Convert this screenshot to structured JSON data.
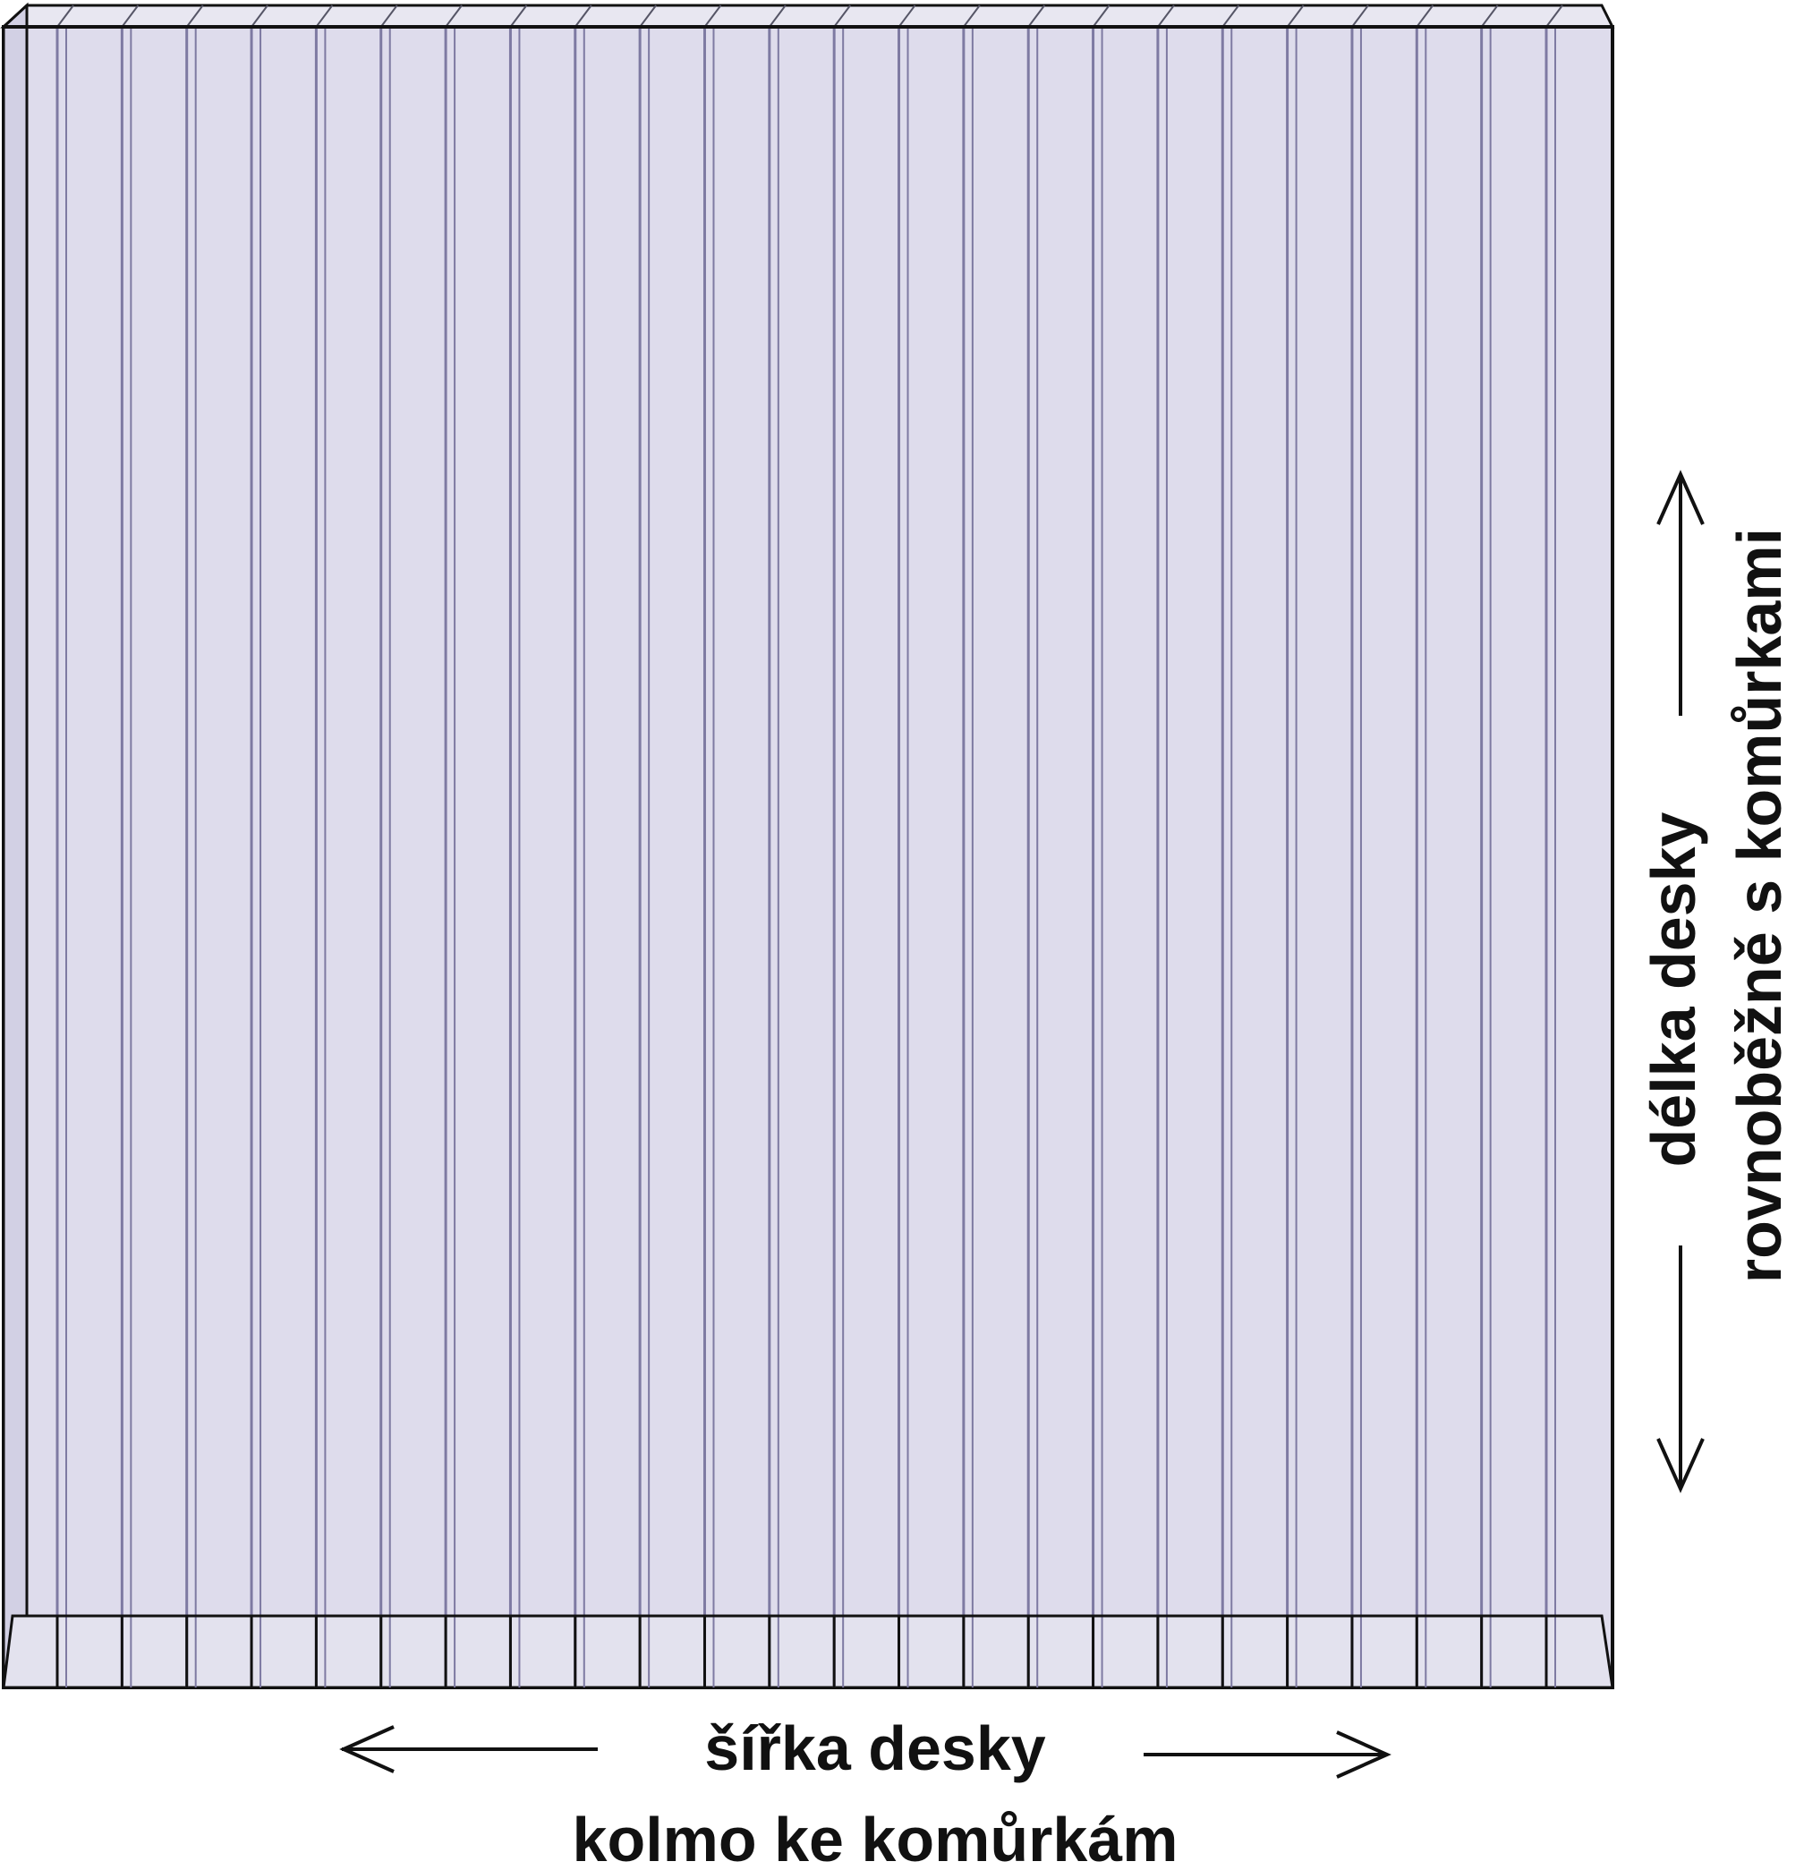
{
  "width_label": {
    "line1": "šířka desky",
    "line2": "kolmo ke komůrkám"
  },
  "length_label": {
    "line1": "délka desky",
    "line2": "rovnoběžně s komůrkami"
  },
  "colors": {
    "panel_fill": "#dedcec",
    "rib": "#7e7aa2",
    "outline": "#111111",
    "bevel": "#c9c6dc"
  },
  "panel": {
    "rib_count": 24
  }
}
